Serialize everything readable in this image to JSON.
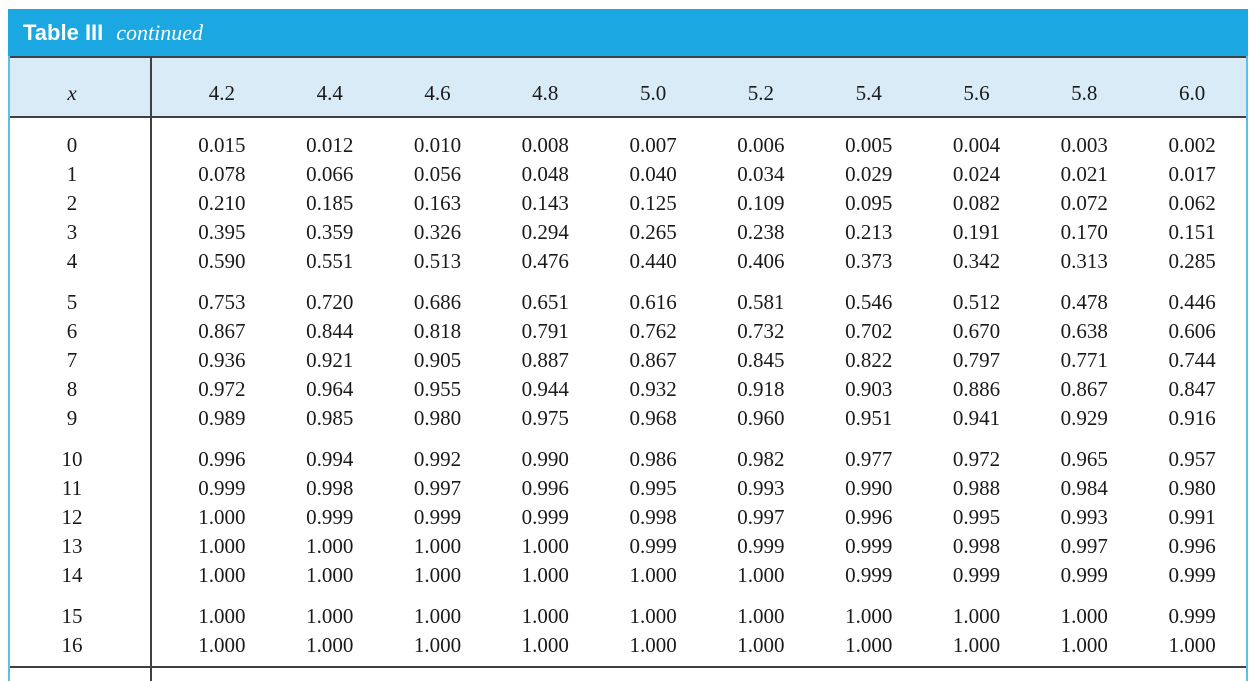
{
  "title": {
    "bold": "Table III",
    "italic": "continued"
  },
  "header": {
    "corner": "x",
    "columns": [
      "4.2",
      "4.4",
      "4.6",
      "4.8",
      "5.0",
      "5.2",
      "5.4",
      "5.6",
      "5.8",
      "6.0"
    ]
  },
  "row_groups": [
    {
      "rows": [
        {
          "x": "0",
          "values": [
            "0.015",
            "0.012",
            "0.010",
            "0.008",
            "0.007",
            "0.006",
            "0.005",
            "0.004",
            "0.003",
            "0.002"
          ]
        },
        {
          "x": "1",
          "values": [
            "0.078",
            "0.066",
            "0.056",
            "0.048",
            "0.040",
            "0.034",
            "0.029",
            "0.024",
            "0.021",
            "0.017"
          ]
        },
        {
          "x": "2",
          "values": [
            "0.210",
            "0.185",
            "0.163",
            "0.143",
            "0.125",
            "0.109",
            "0.095",
            "0.082",
            "0.072",
            "0.062"
          ]
        },
        {
          "x": "3",
          "values": [
            "0.395",
            "0.359",
            "0.326",
            "0.294",
            "0.265",
            "0.238",
            "0.213",
            "0.191",
            "0.170",
            "0.151"
          ]
        },
        {
          "x": "4",
          "values": [
            "0.590",
            "0.551",
            "0.513",
            "0.476",
            "0.440",
            "0.406",
            "0.373",
            "0.342",
            "0.313",
            "0.285"
          ]
        }
      ]
    },
    {
      "rows": [
        {
          "x": "5",
          "values": [
            "0.753",
            "0.720",
            "0.686",
            "0.651",
            "0.616",
            "0.581",
            "0.546",
            "0.512",
            "0.478",
            "0.446"
          ]
        },
        {
          "x": "6",
          "values": [
            "0.867",
            "0.844",
            "0.818",
            "0.791",
            "0.762",
            "0.732",
            "0.702",
            "0.670",
            "0.638",
            "0.606"
          ]
        },
        {
          "x": "7",
          "values": [
            "0.936",
            "0.921",
            "0.905",
            "0.887",
            "0.867",
            "0.845",
            "0.822",
            "0.797",
            "0.771",
            "0.744"
          ]
        },
        {
          "x": "8",
          "values": [
            "0.972",
            "0.964",
            "0.955",
            "0.944",
            "0.932",
            "0.918",
            "0.903",
            "0.886",
            "0.867",
            "0.847"
          ]
        },
        {
          "x": "9",
          "values": [
            "0.989",
            "0.985",
            "0.980",
            "0.975",
            "0.968",
            "0.960",
            "0.951",
            "0.941",
            "0.929",
            "0.916"
          ]
        }
      ]
    },
    {
      "rows": [
        {
          "x": "10",
          "values": [
            "0.996",
            "0.994",
            "0.992",
            "0.990",
            "0.986",
            "0.982",
            "0.977",
            "0.972",
            "0.965",
            "0.957"
          ]
        },
        {
          "x": "11",
          "values": [
            "0.999",
            "0.998",
            "0.997",
            "0.996",
            "0.995",
            "0.993",
            "0.990",
            "0.988",
            "0.984",
            "0.980"
          ]
        },
        {
          "x": "12",
          "values": [
            "1.000",
            "0.999",
            "0.999",
            "0.999",
            "0.998",
            "0.997",
            "0.996",
            "0.995",
            "0.993",
            "0.991"
          ]
        },
        {
          "x": "13",
          "values": [
            "1.000",
            "1.000",
            "1.000",
            "1.000",
            "0.999",
            "0.999",
            "0.999",
            "0.998",
            "0.997",
            "0.996"
          ]
        },
        {
          "x": "14",
          "values": [
            "1.000",
            "1.000",
            "1.000",
            "1.000",
            "1.000",
            "1.000",
            "0.999",
            "0.999",
            "0.999",
            "0.999"
          ]
        }
      ]
    },
    {
      "rows": [
        {
          "x": "15",
          "values": [
            "1.000",
            "1.000",
            "1.000",
            "1.000",
            "1.000",
            "1.000",
            "1.000",
            "1.000",
            "1.000",
            "0.999"
          ]
        },
        {
          "x": "16",
          "values": [
            "1.000",
            "1.000",
            "1.000",
            "1.000",
            "1.000",
            "1.000",
            "1.000",
            "1.000",
            "1.000",
            "1.000"
          ]
        }
      ]
    }
  ],
  "colors": {
    "title_bar": "#1BA7E1",
    "header_bg": "#D9EBF7",
    "rule": "#404040",
    "outer_border": "#5BBFE8",
    "text": "#1a1a1a",
    "title_text": "#ffffff"
  }
}
